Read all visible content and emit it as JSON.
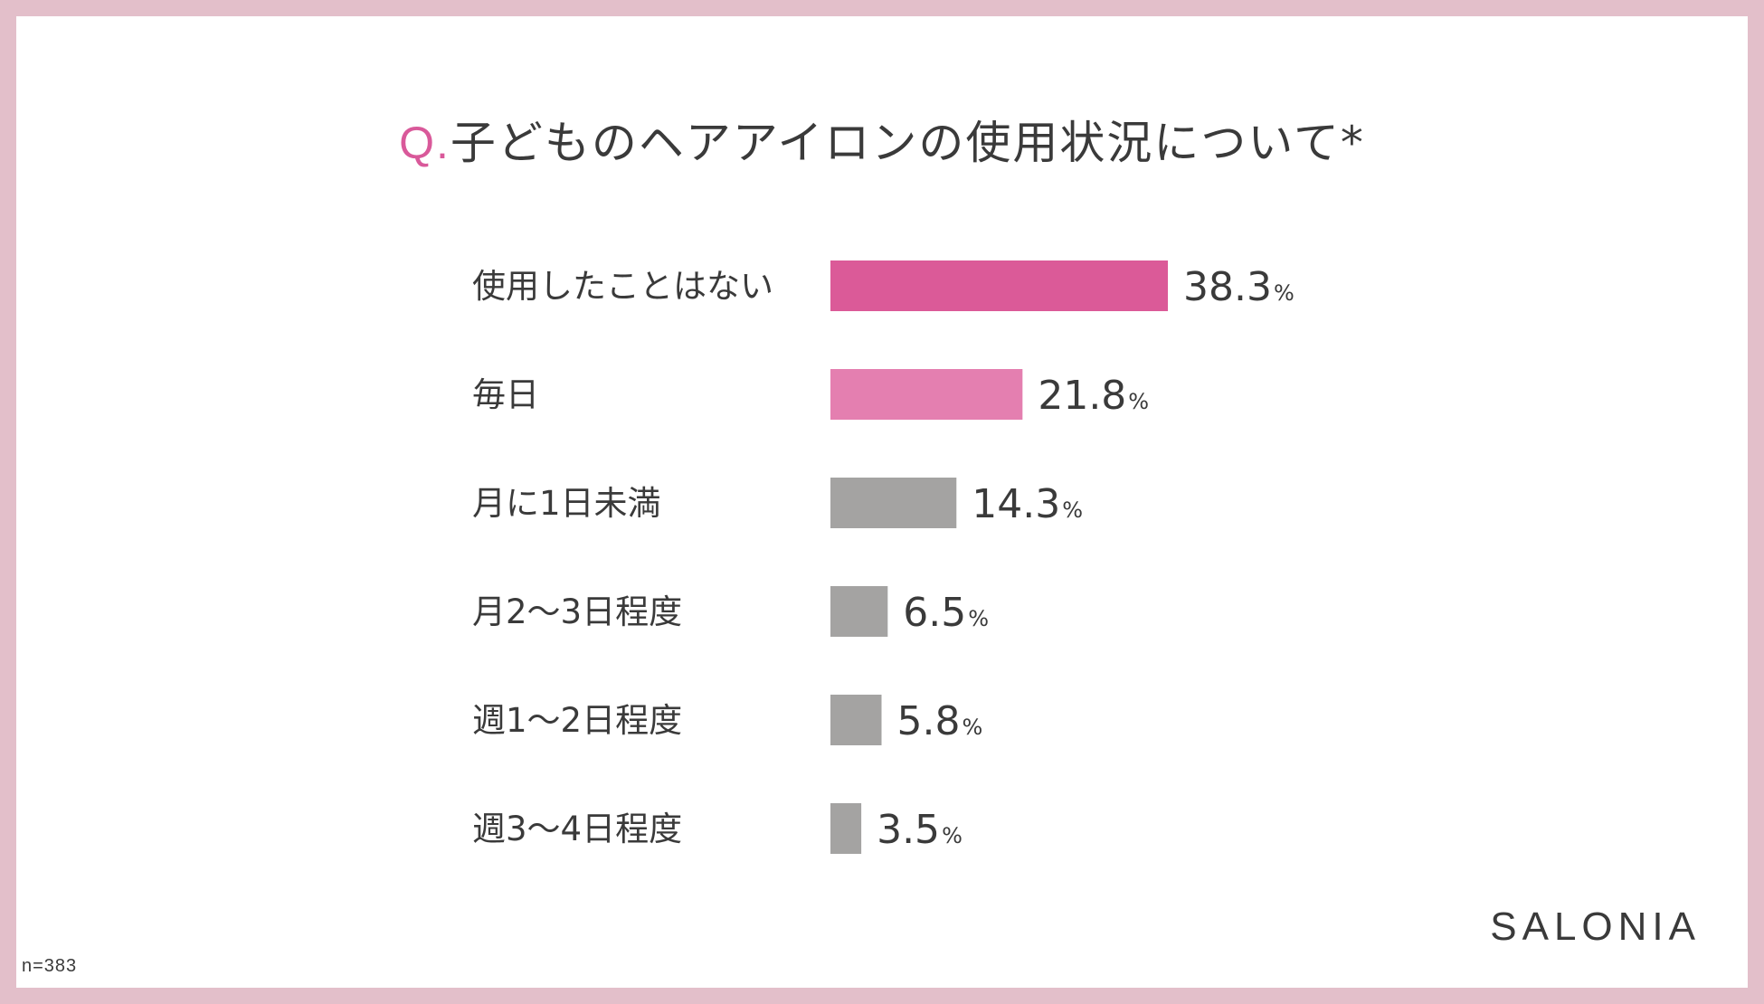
{
  "title": {
    "prefix": "Q.",
    "text": "子どものヘアアイロンの使用状況について*"
  },
  "sample_size": "n=383",
  "brand": "SALONIA",
  "colors": {
    "primary": "#db5a98",
    "secondary": "#e47fb0",
    "neutral": "#a4a3a2",
    "frame": "#e3bfca"
  },
  "chart_data": {
    "type": "bar",
    "orientation": "horizontal",
    "title": "子どものヘアアイロンの使用状況について*",
    "categories": [
      "使用したことはない",
      "毎日",
      "月に1日未満",
      "月2〜3日程度",
      "週1〜2日程度",
      "週3〜4日程度"
    ],
    "values": [
      38.3,
      21.8,
      14.3,
      6.5,
      5.8,
      3.5
    ],
    "value_suffix": "%",
    "bar_colors": [
      "#db5a98",
      "#e47fb0",
      "#a4a3a2",
      "#a4a3a2",
      "#a4a3a2",
      "#a4a3a2"
    ],
    "xlabel": "",
    "ylabel": "",
    "grid": false,
    "legend": "none"
  }
}
